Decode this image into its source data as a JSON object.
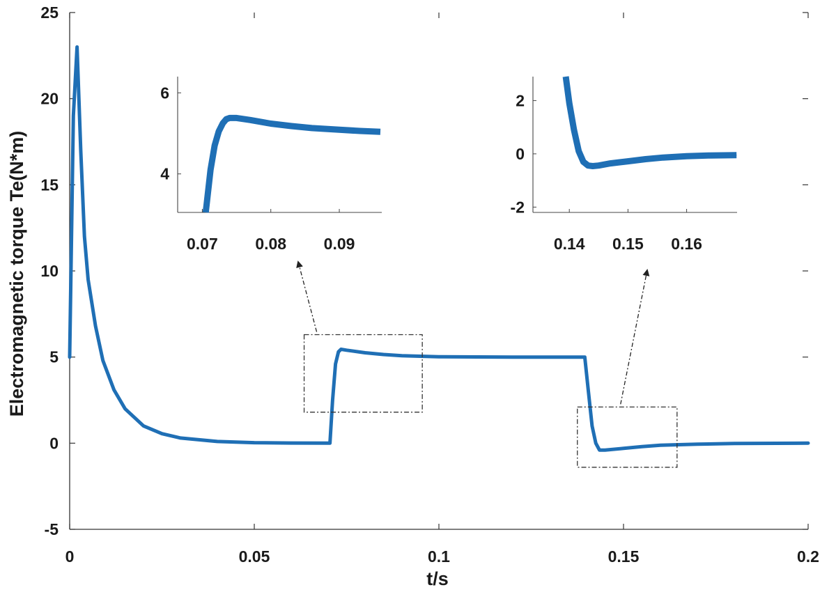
{
  "chart_data": {
    "type": "line",
    "xlabel": "t/s",
    "ylabel": "Electromagnetic torque Te(N*m)",
    "xlim": [
      0,
      0.2
    ],
    "ylim": [
      -5,
      25
    ],
    "x_ticks": [
      "0",
      "0.05",
      "0.1",
      "0.15",
      "0.2"
    ],
    "y_ticks": [
      "-5",
      "0",
      "5",
      "10",
      "15",
      "20",
      "25"
    ],
    "grid": false,
    "line_color": "#1f6fb5",
    "series": [
      {
        "x": [
          0,
          0.001,
          0.002,
          0.003,
          0.004,
          0.005,
          0.007,
          0.009,
          0.012,
          0.015,
          0.02,
          0.025,
          0.03,
          0.04,
          0.05,
          0.06,
          0.0705,
          0.0712,
          0.072,
          0.0728,
          0.0735,
          0.075,
          0.08,
          0.085,
          0.09,
          0.1,
          0.12,
          0.1395,
          0.1405,
          0.1415,
          0.1425,
          0.1435,
          0.145,
          0.15,
          0.155,
          0.16,
          0.17,
          0.18,
          0.2
        ],
        "y": [
          5,
          19,
          23,
          17,
          12,
          9.5,
          6.8,
          4.8,
          3.1,
          2.0,
          1.0,
          0.55,
          0.3,
          0.1,
          0.03,
          0.01,
          0,
          2.5,
          4.6,
          5.3,
          5.45,
          5.4,
          5.25,
          5.15,
          5.08,
          5.02,
          5.0,
          5.0,
          3.0,
          1.0,
          0.0,
          -0.4,
          -0.4,
          -0.3,
          -0.2,
          -0.12,
          -0.06,
          -0.02,
          0.0
        ]
      }
    ],
    "zoom_boxes": [
      {
        "x": [
          0.0635,
          0.0955
        ],
        "y": [
          1.8,
          6.3
        ]
      },
      {
        "x": [
          0.1375,
          0.1645
        ],
        "y": [
          -1.4,
          2.1
        ]
      }
    ],
    "insets": [
      {
        "xlim": [
          0.0664,
          0.0962
        ],
        "ylim": [
          3.05,
          6.4
        ],
        "x_ticks": [
          "0.07",
          "0.08",
          "0.09"
        ],
        "y_ticks": [
          "4",
          "6"
        ],
        "series": {
          "x": [
            0.0705,
            0.0712,
            0.0718,
            0.0724,
            0.073,
            0.0735,
            0.074,
            0.075,
            0.077,
            0.08,
            0.083,
            0.086,
            0.09,
            0.093,
            0.096
          ],
          "y": [
            3.05,
            4.1,
            4.7,
            5.05,
            5.25,
            5.35,
            5.38,
            5.38,
            5.33,
            5.24,
            5.18,
            5.13,
            5.09,
            5.06,
            5.04
          ]
        }
      },
      {
        "xlim": [
          0.1338,
          0.1686
        ],
        "ylim": [
          -2.2,
          2.9
        ],
        "x_ticks": [
          "0.14",
          "0.15",
          "0.16"
        ],
        "y_ticks": [
          "-2",
          "0",
          "2"
        ],
        "series": {
          "x": [
            0.1394,
            0.14,
            0.1408,
            0.1416,
            0.1424,
            0.1432,
            0.144,
            0.145,
            0.147,
            0.15,
            0.153,
            0.156,
            0.16,
            0.164,
            0.1685
          ],
          "y": [
            2.9,
            1.9,
            0.9,
            0.1,
            -0.3,
            -0.44,
            -0.46,
            -0.44,
            -0.36,
            -0.28,
            -0.2,
            -0.14,
            -0.09,
            -0.06,
            -0.05
          ]
        }
      }
    ]
  }
}
